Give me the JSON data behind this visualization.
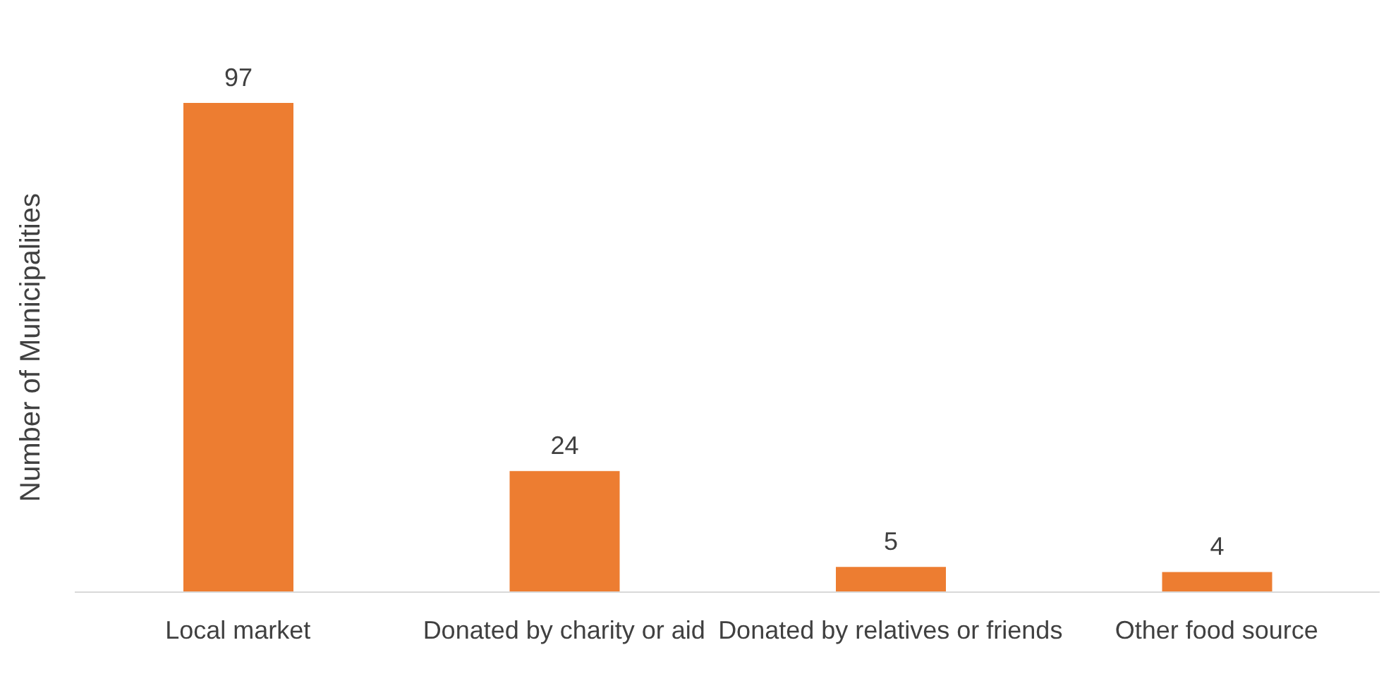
{
  "chart_data": {
    "type": "bar",
    "ylabel": "Number of Municipalities",
    "categories": [
      "Local market",
      "Donated by charity or aid",
      "Donated by relatives or friends",
      "Other food source"
    ],
    "values": [
      97,
      24,
      5,
      4
    ],
    "color": "#ed7d31",
    "data_labels": true
  }
}
